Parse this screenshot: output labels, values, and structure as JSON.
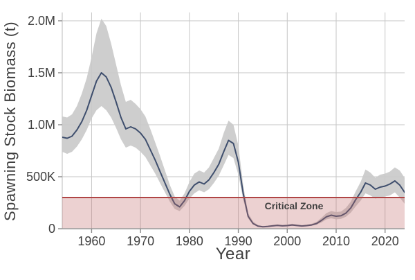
{
  "chart_data": {
    "type": "line",
    "title": "",
    "xlabel": "Year",
    "ylabel": "Spawning Stock Biomass (t)",
    "x_range": [
      1954,
      2024
    ],
    "y_range": [
      0,
      2000000
    ],
    "grid": true,
    "legend_position": "none",
    "x_ticks": [
      {
        "value": 1960,
        "label": "1960"
      },
      {
        "value": 1970,
        "label": "1970"
      },
      {
        "value": 1980,
        "label": "1980"
      },
      {
        "value": 1990,
        "label": "1990"
      },
      {
        "value": 2000,
        "label": "2000"
      },
      {
        "value": 2010,
        "label": "2010"
      },
      {
        "value": 2020,
        "label": "2020"
      }
    ],
    "y_ticks": [
      {
        "value": 0,
        "label": "0"
      },
      {
        "value": 500000,
        "label": "500K"
      },
      {
        "value": 1000000,
        "label": "1.0M"
      },
      {
        "value": 1500000,
        "label": "1.5M"
      },
      {
        "value": 2000000,
        "label": "2.0M"
      }
    ],
    "critical_zone": {
      "label": "Critical Zone",
      "threshold": 300000,
      "fill_color": "#c06868",
      "fill_opacity": 0.3,
      "line_color": "#b04545",
      "text_color": "#c0392b"
    },
    "colors": {
      "line": "#3e4e6d",
      "band": "#c9c9c9",
      "grid": "#c6c6c6",
      "text": "#3f3f3f"
    },
    "series": [
      {
        "name": "spawning-stock-biomass",
        "x": [
          1954,
          1955,
          1956,
          1957,
          1958,
          1959,
          1960,
          1961,
          1962,
          1963,
          1964,
          1965,
          1966,
          1967,
          1968,
          1969,
          1970,
          1971,
          1972,
          1973,
          1974,
          1975,
          1976,
          1977,
          1978,
          1979,
          1980,
          1981,
          1982,
          1983,
          1984,
          1985,
          1986,
          1987,
          1988,
          1989,
          1990,
          1991,
          1992,
          1993,
          1994,
          1995,
          1996,
          1997,
          1998,
          1999,
          2000,
          2001,
          2002,
          2003,
          2004,
          2005,
          2006,
          2007,
          2008,
          2009,
          2010,
          2011,
          2012,
          2013,
          2014,
          2015,
          2016,
          2017,
          2018,
          2019,
          2020,
          2021,
          2022,
          2023,
          2024
        ],
        "y": [
          880000,
          870000,
          890000,
          950000,
          1030000,
          1140000,
          1280000,
          1420000,
          1500000,
          1460000,
          1360000,
          1220000,
          1070000,
          960000,
          980000,
          960000,
          920000,
          860000,
          760000,
          660000,
          550000,
          440000,
          330000,
          240000,
          210000,
          270000,
          360000,
          420000,
          450000,
          430000,
          470000,
          540000,
          620000,
          740000,
          850000,
          820000,
          640000,
          340000,
          120000,
          50000,
          25000,
          18000,
          22000,
          27000,
          32000,
          27000,
          30000,
          36000,
          31000,
          26000,
          30000,
          36000,
          50000,
          80000,
          115000,
          130000,
          120000,
          125000,
          150000,
          200000,
          280000,
          350000,
          440000,
          420000,
          380000,
          400000,
          410000,
          430000,
          460000,
          420000,
          350000
        ]
      }
    ],
    "band": {
      "name": "confidence-interval",
      "lower": [
        740000,
        720000,
        740000,
        790000,
        860000,
        950000,
        1060000,
        1140000,
        1180000,
        1140000,
        1070000,
        970000,
        860000,
        780000,
        800000,
        780000,
        740000,
        690000,
        610000,
        530000,
        440000,
        350000,
        260000,
        190000,
        170000,
        220000,
        290000,
        340000,
        370000,
        350000,
        380000,
        440000,
        510000,
        610000,
        710000,
        680000,
        520000,
        280000,
        100000,
        40000,
        20000,
        14000,
        17000,
        21000,
        25000,
        21000,
        23000,
        28000,
        24000,
        20000,
        23000,
        28000,
        38000,
        60000,
        90000,
        100000,
        90000,
        95000,
        115000,
        155000,
        215000,
        270000,
        340000,
        320000,
        290000,
        300000,
        310000,
        320000,
        350000,
        300000,
        240000
      ],
      "upper": [
        1080000,
        1070000,
        1100000,
        1180000,
        1300000,
        1450000,
        1650000,
        1880000,
        2020000,
        1950000,
        1780000,
        1580000,
        1380000,
        1220000,
        1240000,
        1200000,
        1150000,
        1080000,
        960000,
        830000,
        700000,
        560000,
        420000,
        310000,
        270000,
        340000,
        450000,
        530000,
        560000,
        540000,
        590000,
        680000,
        770000,
        920000,
        1040000,
        1000000,
        800000,
        420000,
        150000,
        70000,
        35000,
        25000,
        30000,
        36000,
        43000,
        36000,
        40000,
        48000,
        41000,
        35000,
        40000,
        48000,
        66000,
        105000,
        150000,
        170000,
        160000,
        165000,
        200000,
        260000,
        360000,
        450000,
        570000,
        540000,
        490000,
        520000,
        530000,
        550000,
        590000,
        560000,
        490000
      ]
    }
  }
}
